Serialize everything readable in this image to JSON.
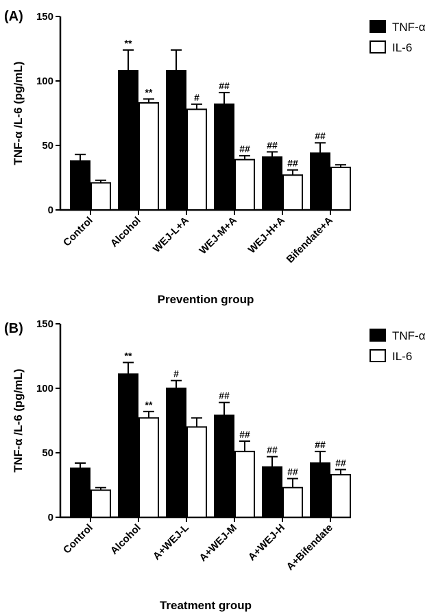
{
  "chart_data": [
    {
      "type": "bar",
      "panel_label": "(A)",
      "ylabel": "TNF-α /L-6 (pg/mL)",
      "xlabel": "Prevention group",
      "ylim": [
        0,
        150
      ],
      "yticks": [
        "0",
        "50",
        "100",
        "150"
      ],
      "categories": [
        "Control",
        "Alcohol",
        "WEJ-L+A",
        "WEJ-M+A",
        "WEJ-H+A",
        "Bifendate+A"
      ],
      "series": [
        {
          "name": "TNF-α",
          "color": "#000000",
          "values": [
            38,
            108,
            108,
            82,
            41,
            44
          ],
          "errors": [
            5,
            16,
            16,
            9,
            4,
            8
          ],
          "annotations": [
            "",
            "**",
            "",
            "##",
            "##",
            "##"
          ]
        },
        {
          "name": "IL-6",
          "color": "#ffffff",
          "values": [
            21,
            83,
            78,
            39,
            27,
            33
          ],
          "errors": [
            2,
            3,
            4,
            3,
            4,
            2
          ],
          "annotations": [
            "",
            "**",
            "#",
            "##",
            "##",
            ""
          ]
        }
      ],
      "legend": "top-right"
    },
    {
      "type": "bar",
      "panel_label": "(B)",
      "ylabel": "TNF-α /L-6 (pg/mL)",
      "xlabel": "Treatment group",
      "ylim": [
        0,
        150
      ],
      "yticks": [
        "0",
        "50",
        "100",
        "150"
      ],
      "categories": [
        "Control",
        "Alcohol",
        "A+WEJ-L",
        "A+WEJ-M",
        "A+WEJ-H",
        "A+Bifendate"
      ],
      "series": [
        {
          "name": "TNF-α",
          "color": "#000000",
          "values": [
            38,
            111,
            100,
            79,
            39,
            42
          ],
          "errors": [
            4,
            9,
            6,
            10,
            8,
            9
          ],
          "annotations": [
            "",
            "**",
            "#",
            "##",
            "##",
            "##"
          ]
        },
        {
          "name": "IL-6",
          "color": "#ffffff",
          "values": [
            21,
            77,
            70,
            51,
            23,
            33
          ],
          "errors": [
            2,
            5,
            7,
            8,
            7,
            4
          ],
          "annotations": [
            "",
            "**",
            "",
            "##",
            "##",
            "##"
          ]
        }
      ],
      "legend": "top-right"
    }
  ]
}
